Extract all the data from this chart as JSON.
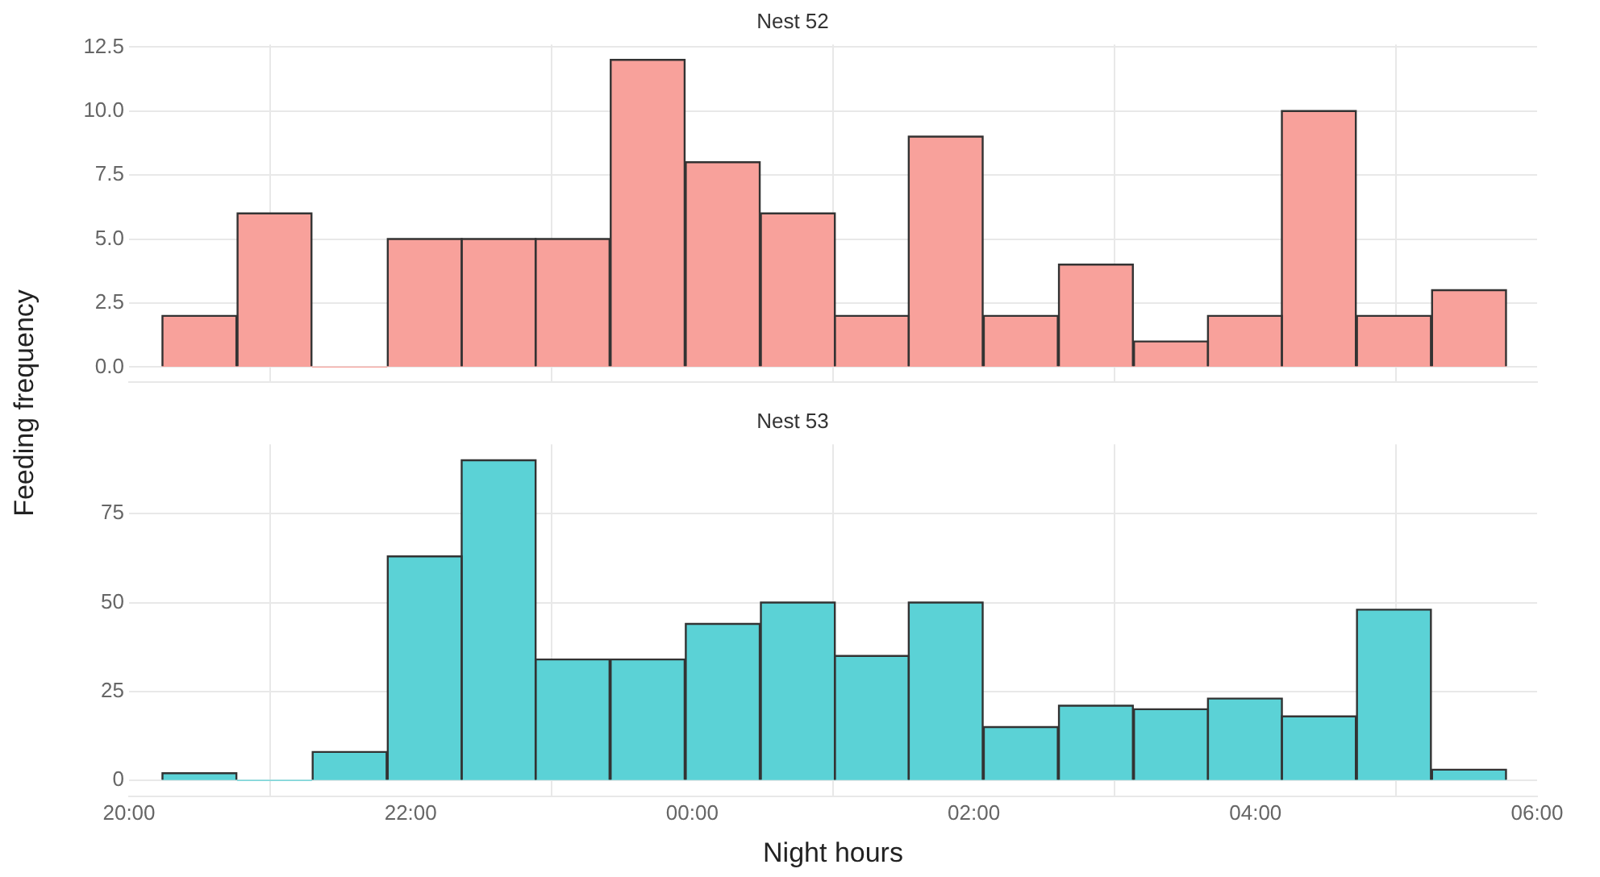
{
  "chart_data": [
    {
      "type": "histogram",
      "title": "Nest 52",
      "ylabel": "Feeding frequency",
      "bins": [
        "2000-01-01T20:14",
        "2000-01-01T20:46",
        "2000-01-01T21:18",
        "2000-01-01T21:50",
        "2000-01-01T22:22",
        "2000-01-01T22:53",
        "2000-01-01T23:25",
        "2000-01-01T23:57",
        "2000-01-02T00:29",
        "2000-01-02T01:01",
        "2000-01-02T01:32",
        "2000-01-02T02:04",
        "2000-01-02T02:36",
        "2000-01-02T03:08",
        "2000-01-02T03:40",
        "2000-01-02T04:11",
        "2000-01-02T04:43",
        "2000-01-02T05:15",
        "2000-01-02T05:47"
      ],
      "values": [
        2,
        6,
        0,
        5,
        5,
        5,
        12,
        8,
        6,
        2,
        9,
        2,
        4,
        1,
        2,
        10,
        2,
        3
      ],
      "color": "#f8a19b",
      "xlim": [
        "2000-01-01T20:00",
        "2000-01-02T06:00"
      ],
      "xticks": [
        "2000-01-01T20:00",
        "2000-01-01T22:00",
        "2000-01-02T00:00",
        "2000-01-02T02:00",
        "2000-01-02T04:00",
        "2000-01-02T06:00"
      ],
      "ylim": [
        -0.6,
        12.6
      ],
      "yticks": [
        {
          "value": 0,
          "label": "0.0"
        },
        {
          "value": 2.5,
          "label": "2.5"
        },
        {
          "value": 5,
          "label": "5.0"
        },
        {
          "value": 7.5,
          "label": "7.5"
        },
        {
          "value": 10,
          "label": "10.0"
        },
        {
          "value": 12.5,
          "label": "12.5"
        }
      ],
      "grid": true,
      "tick_labels": "y"
    },
    {
      "type": "histogram",
      "title": "Nest 53",
      "xlabel": "Night hours",
      "bins": [
        "2000-01-01T20:14",
        "2000-01-01T20:46",
        "2000-01-01T21:18",
        "2000-01-01T21:50",
        "2000-01-01T22:22",
        "2000-01-01T22:53",
        "2000-01-01T23:25",
        "2000-01-01T23:57",
        "2000-01-02T00:29",
        "2000-01-02T01:01",
        "2000-01-02T01:32",
        "2000-01-02T02:04",
        "2000-01-02T02:36",
        "2000-01-02T03:08",
        "2000-01-02T03:40",
        "2000-01-02T04:11",
        "2000-01-02T04:43",
        "2000-01-02T05:15",
        "2000-01-02T05:47"
      ],
      "values": [
        2,
        0,
        8,
        63,
        90,
        34,
        34,
        44,
        50,
        35,
        50,
        15,
        21,
        20,
        23,
        18,
        48,
        3
      ],
      "color": "#5bd2d6",
      "xlim": [
        "2000-01-01T20:00",
        "2000-01-02T06:00"
      ],
      "xticks": [
        {
          "value": "2000-01-01T20:00",
          "label": "20:00"
        },
        {
          "value": "2000-01-01T22:00",
          "label": "22:00"
        },
        {
          "value": "2000-01-02T00:00",
          "label": "00:00"
        },
        {
          "value": "2000-01-02T02:00",
          "label": "02:00"
        },
        {
          "value": "2000-01-02T04:00",
          "label": "04:00"
        },
        {
          "value": "2000-01-02T06:00",
          "label": "06:00"
        }
      ],
      "ylim": [
        -4.5,
        94.5
      ],
      "yticks": [
        0,
        25,
        50,
        75
      ],
      "grid": true
    }
  ]
}
